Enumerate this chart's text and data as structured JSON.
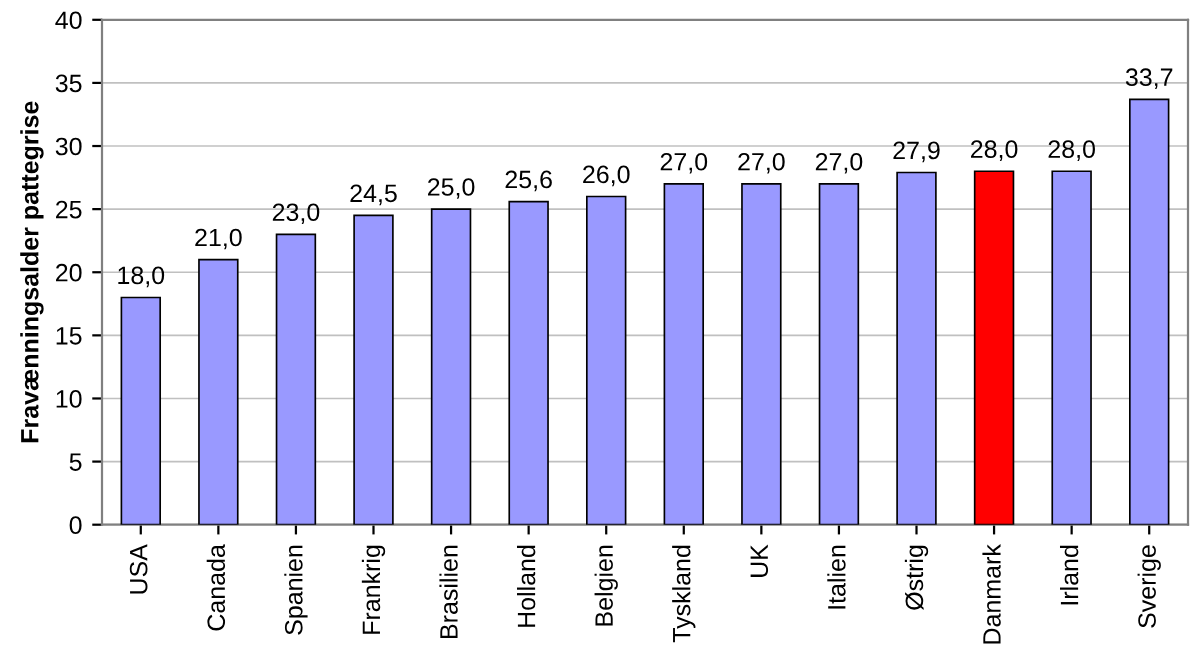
{
  "chart_data": {
    "type": "bar",
    "ylabel": "Fravænningsalder pattegrise",
    "categories": [
      "USA",
      "Canada",
      "Spanien",
      "Frankrig",
      "Brasilien",
      "Holland",
      "Belgien",
      "Tyskland",
      "UK",
      "Italien",
      "Østrig",
      "Danmark",
      "Irland",
      "Sverige"
    ],
    "values": [
      18.0,
      21.0,
      23.0,
      24.5,
      25.0,
      25.6,
      26.0,
      27.0,
      27.0,
      27.0,
      27.9,
      28.0,
      28.0,
      33.7
    ],
    "value_labels": [
      "18,0",
      "21,0",
      "23,0",
      "24,5",
      "25,0",
      "25,6",
      "26,0",
      "27,0",
      "27,0",
      "27,0",
      "27,9",
      "28,0",
      "28,0",
      "33,7"
    ],
    "colors": [
      "#9999ff",
      "#9999ff",
      "#9999ff",
      "#9999ff",
      "#9999ff",
      "#9999ff",
      "#9999ff",
      "#9999ff",
      "#9999ff",
      "#9999ff",
      "#9999ff",
      "#ff0000",
      "#9999ff",
      "#9999ff"
    ],
    "ylim": [
      0,
      40
    ],
    "yticks": [
      0,
      5,
      10,
      15,
      20,
      25,
      30,
      35,
      40
    ],
    "grid": "y"
  }
}
